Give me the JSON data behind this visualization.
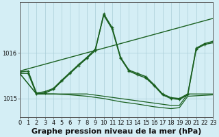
{
  "title": "Graphe pression niveau de la mer (hPa)",
  "bg_color": "#d4eef5",
  "grid_color": "#aaced8",
  "line_color": "#1a6020",
  "xlim": [
    0,
    23
  ],
  "ylim": [
    1014.6,
    1017.1
  ],
  "yticks": [
    1015,
    1016
  ],
  "xticks": [
    0,
    1,
    2,
    3,
    4,
    5,
    6,
    7,
    8,
    9,
    10,
    11,
    12,
    13,
    14,
    15,
    16,
    17,
    18,
    19,
    20,
    21,
    22,
    23
  ],
  "series": [
    {
      "x": [
        0,
        23
      ],
      "y": [
        1015.6,
        1016.75
      ],
      "marker": null,
      "lw": 1.0
    },
    {
      "x": [
        0,
        2,
        4,
        6,
        8,
        10,
        12,
        14,
        16,
        18,
        19,
        20,
        23
      ],
      "y": [
        1015.55,
        1015.1,
        1015.1,
        1015.1,
        1015.1,
        1015.05,
        1015.0,
        1014.95,
        1014.9,
        1014.85,
        1014.85,
        1015.1,
        1015.1
      ],
      "marker": null,
      "lw": 0.9
    },
    {
      "x": [
        0,
        2,
        4,
        6,
        8,
        10,
        12,
        14,
        16,
        18,
        19,
        20,
        23
      ],
      "y": [
        1015.55,
        1015.1,
        1015.1,
        1015.08,
        1015.05,
        1015.0,
        1014.93,
        1014.88,
        1014.82,
        1014.78,
        1014.8,
        1015.05,
        1015.08
      ],
      "marker": null,
      "lw": 0.9
    },
    {
      "x": [
        0,
        1,
        2,
        3,
        4,
        5,
        6,
        7,
        8,
        9,
        10,
        11,
        12,
        13,
        14,
        15,
        16,
        17,
        18,
        19,
        20,
        21,
        22,
        23
      ],
      "y": [
        1015.55,
        1015.55,
        1015.1,
        1015.12,
        1015.2,
        1015.38,
        1015.55,
        1015.72,
        1015.88,
        1016.05,
        1016.85,
        1016.55,
        1015.9,
        1015.62,
        1015.55,
        1015.48,
        1015.3,
        1015.1,
        1015.02,
        1015.0,
        1015.1,
        1016.1,
        1016.2,
        1016.25
      ],
      "marker": "+",
      "lw": 1.1
    },
    {
      "x": [
        0,
        1,
        2,
        3,
        4,
        5,
        6,
        7,
        8,
        9,
        10,
        11,
        12,
        13,
        14,
        15,
        16,
        17,
        18,
        19,
        20,
        21,
        22,
        23
      ],
      "y": [
        1015.58,
        1015.6,
        1015.12,
        1015.15,
        1015.22,
        1015.4,
        1015.57,
        1015.74,
        1015.9,
        1016.08,
        1016.82,
        1016.52,
        1015.88,
        1015.6,
        1015.52,
        1015.45,
        1015.28,
        1015.08,
        1015.0,
        1014.98,
        1015.08,
        1016.08,
        1016.18,
        1016.22
      ],
      "marker": "+",
      "lw": 1.1
    }
  ],
  "title_fontsize": 8.0,
  "tick_fontsize": 6.0
}
